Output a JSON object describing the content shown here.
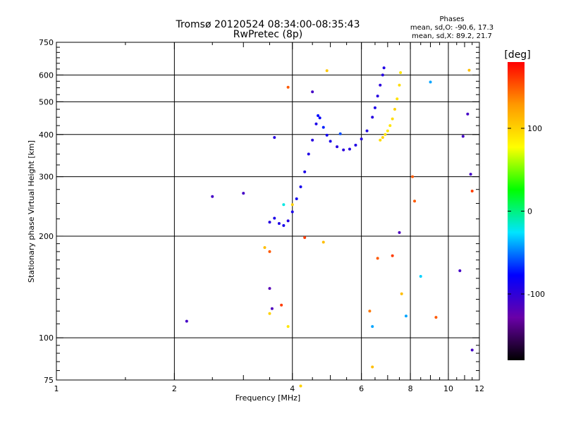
{
  "chart_data": {
    "type": "scatter",
    "title": "Tromsø 20120524 08:34:00-08:35:43",
    "subtitle": "RwPretec (8p)",
    "xlabel": "Frequency [MHz]",
    "ylabel": "Stationary phase Virtual Height [km]",
    "x_scale": "log",
    "y_scale": "log",
    "xlim": [
      1,
      12
    ],
    "ylim": [
      75,
      750
    ],
    "x_ticks": [
      1,
      2,
      4,
      6,
      8,
      10,
      12
    ],
    "y_ticks": [
      75,
      100,
      200,
      300,
      400,
      500,
      600,
      750
    ],
    "grid": true,
    "phases": {
      "header": "Phases",
      "line_o": "mean, sd,O: -90.6, 17.3",
      "line_x": "mean, sd,X: 89.2, 21.7"
    },
    "colorbar": {
      "label": "[deg]",
      "range": [
        -180,
        180
      ],
      "ticks": [
        -100,
        0,
        100
      ],
      "colors": [
        "#000000",
        "#6a00a8",
        "#0000ff",
        "#00e5ff",
        "#00ff00",
        "#ffff00",
        "#ff9900",
        "#ff0000"
      ]
    },
    "series": [
      {
        "trace": "O",
        "points": [
          [
            3.5,
            220,
            -95
          ],
          [
            3.6,
            226,
            -90
          ],
          [
            3.7,
            218,
            -92
          ],
          [
            3.8,
            215,
            -88
          ],
          [
            3.9,
            222,
            -95
          ],
          [
            4.0,
            236,
            -90
          ],
          [
            4.1,
            258,
            -85
          ],
          [
            4.2,
            280,
            -88
          ],
          [
            4.3,
            310,
            -90
          ],
          [
            4.4,
            350,
            -92
          ],
          [
            4.5,
            385,
            -95
          ],
          [
            4.6,
            430,
            -90
          ],
          [
            4.65,
            455,
            -75
          ],
          [
            4.7,
            448,
            -80
          ],
          [
            4.8,
            420,
            -70
          ],
          [
            4.9,
            398,
            -85
          ],
          [
            5.0,
            382,
            -90
          ],
          [
            5.2,
            368,
            -95
          ],
          [
            5.4,
            360,
            -98
          ],
          [
            5.6,
            362,
            -95
          ],
          [
            5.8,
            372,
            -92
          ],
          [
            6.0,
            388,
            -95
          ],
          [
            6.2,
            410,
            -92
          ],
          [
            6.4,
            450,
            -95
          ],
          [
            6.5,
            480,
            -90
          ],
          [
            6.6,
            520,
            -95
          ],
          [
            6.7,
            560,
            -98
          ],
          [
            6.8,
            600,
            -95
          ],
          [
            6.85,
            630,
            -92
          ]
        ]
      },
      {
        "trace": "X",
        "points": [
          [
            6.7,
            385,
            95
          ],
          [
            6.8,
            392,
            100
          ],
          [
            6.9,
            400,
            92
          ],
          [
            7.0,
            410,
            88
          ],
          [
            7.1,
            425,
            90
          ],
          [
            7.2,
            445,
            95
          ],
          [
            7.3,
            475,
            100
          ],
          [
            7.4,
            510,
            92
          ],
          [
            7.5,
            560,
            95
          ],
          [
            7.55,
            610,
            90
          ]
        ]
      },
      {
        "trace": "scattered",
        "points": [
          [
            2.15,
            112,
            -110
          ],
          [
            2.5,
            262,
            -110
          ],
          [
            3.0,
            268,
            -110
          ],
          [
            3.4,
            185,
            110
          ],
          [
            3.5,
            180,
            150
          ],
          [
            3.5,
            140,
            -120
          ],
          [
            3.55,
            122,
            -115
          ],
          [
            3.5,
            118,
            100
          ],
          [
            3.6,
            392,
            -95
          ],
          [
            3.75,
            125,
            160
          ],
          [
            3.8,
            248,
            -20
          ],
          [
            3.9,
            108,
            90
          ],
          [
            3.9,
            552,
            150
          ],
          [
            4.0,
            248,
            100
          ],
          [
            4.2,
            72,
            100
          ],
          [
            4.3,
            198,
            160
          ],
          [
            4.5,
            535,
            -110
          ],
          [
            4.8,
            192,
            110
          ],
          [
            4.9,
            618,
            105
          ],
          [
            5.3,
            402,
            -60
          ],
          [
            6.3,
            120,
            140
          ],
          [
            6.4,
            108,
            -40
          ],
          [
            6.4,
            82,
            110
          ],
          [
            6.6,
            172,
            150
          ],
          [
            7.2,
            175,
            160
          ],
          [
            7.5,
            205,
            -115
          ],
          [
            7.6,
            135,
            110
          ],
          [
            7.8,
            116,
            -40
          ],
          [
            8.1,
            300,
            150
          ],
          [
            8.2,
            254,
            150
          ],
          [
            8.5,
            152,
            -30
          ],
          [
            9.0,
            572,
            -40
          ],
          [
            9.3,
            115,
            150
          ],
          [
            10.7,
            158,
            -110
          ],
          [
            10.9,
            395,
            -110
          ],
          [
            11.2,
            460,
            -110
          ],
          [
            11.3,
            620,
            110
          ],
          [
            11.4,
            305,
            -110
          ],
          [
            11.5,
            92,
            -110
          ],
          [
            11.5,
            272,
            160
          ]
        ]
      }
    ]
  }
}
